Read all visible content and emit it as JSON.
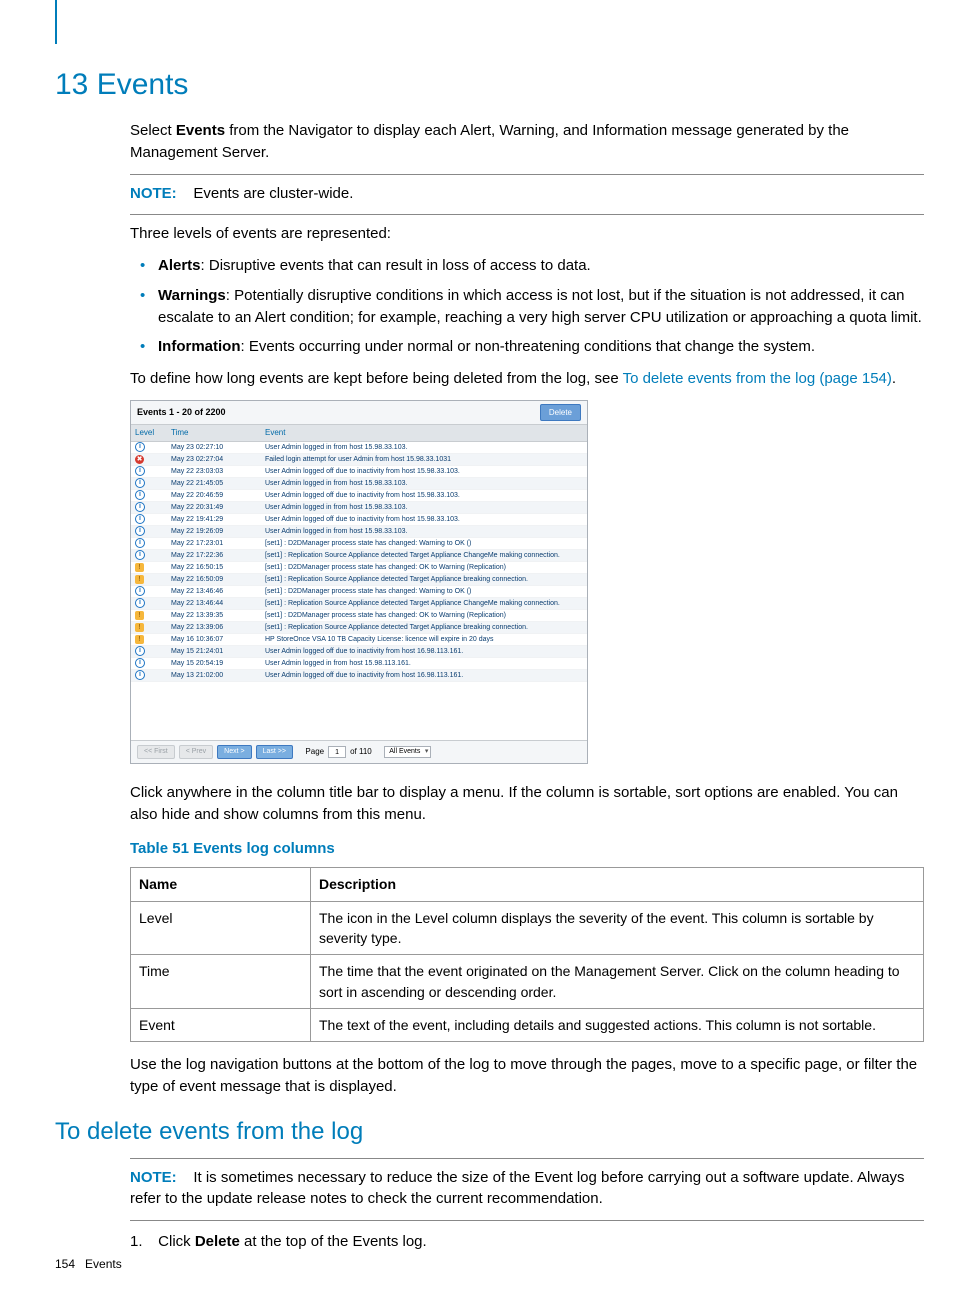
{
  "chapter": {
    "title": "13 Events"
  },
  "intro": {
    "para": "Select <b>Events</b> from the Navigator to display each Alert, Warning, and Information message generated by the Management Server.",
    "note_label": "NOTE:",
    "note_text": "Events are cluster-wide.",
    "levels_intro": "Three levels of events are represented:",
    "bullets": [
      "<b>Alerts</b>: Disruptive events that can result in loss of access to data.",
      "<b>Warnings</b>: Potentially disruptive conditions in which access is not lost, but if the situation is not addressed, it can escalate to an Alert condition; for example, reaching a very high server CPU utilization or approaching a quota limit.",
      "<b>Information</b>: Events occurring under normal or non-threatening conditions that change the system."
    ],
    "define_pre": "To define how long events are kept before being deleted from the log, see ",
    "define_link": "To delete events from the log (page 154)",
    "define_post": "."
  },
  "evlog": {
    "title": "Events 1 - 20 of 2200",
    "delete_btn": "Delete",
    "columns": {
      "level": "Level",
      "time": "Time ",
      "event": "Event"
    },
    "rows": [
      {
        "lvl": "info",
        "time": "May 23 02:27:10",
        "event": "User Admin logged in from host 15.98.33.103."
      },
      {
        "lvl": "alert",
        "time": "May 23 02:27:04",
        "event": "Failed login attempt for user Admin from host 15.98.33.1031"
      },
      {
        "lvl": "info",
        "time": "May 22 23:03:03",
        "event": "User Admin logged off due to inactivity from host 15.98.33.103."
      },
      {
        "lvl": "info",
        "time": "May 22 21:45:05",
        "event": "User Admin logged in from host 15.98.33.103."
      },
      {
        "lvl": "info",
        "time": "May 22 20:46:59",
        "event": "User Admin logged off due to inactivity from host 15.98.33.103."
      },
      {
        "lvl": "info",
        "time": "May 22 20:31:49",
        "event": "User Admin logged in from host 15.98.33.103."
      },
      {
        "lvl": "info",
        "time": "May 22 19:41:29",
        "event": "User Admin logged off due to inactivity from host 15.98.33.103."
      },
      {
        "lvl": "info",
        "time": "May 22 19:26:09",
        "event": "User Admin logged in from host 15.98.33.103."
      },
      {
        "lvl": "info",
        "time": "May 22 17:23:01",
        "event": "[set1] : D2DManager process state has changed: Warning to OK ()"
      },
      {
        "lvl": "info",
        "time": "May 22 17:22:36",
        "event": "[set1] : Replication Source Appliance detected Target Appliance ChangeMe making connection."
      },
      {
        "lvl": "warn",
        "time": "May 22 16:50:15",
        "event": "[set1] : D2DManager process state has changed: OK to Warning (Replication)"
      },
      {
        "lvl": "warn",
        "time": "May 22 16:50:09",
        "event": "[set1] : Replication Source Appliance detected Target Appliance breaking connection."
      },
      {
        "lvl": "info",
        "time": "May 22 13:46:46",
        "event": "[set1] : D2DManager process state has changed: Warning to OK ()"
      },
      {
        "lvl": "info",
        "time": "May 22 13:46:44",
        "event": "[set1] : Replication Source Appliance detected Target Appliance ChangeMe making connection."
      },
      {
        "lvl": "warn",
        "time": "May 22 13:39:35",
        "event": "[set1] : D2DManager process state has changed: OK to Warning (Replication)"
      },
      {
        "lvl": "warn",
        "time": "May 22 13:39:06",
        "event": "[set1] : Replication Source Appliance detected Target Appliance breaking connection."
      },
      {
        "lvl": "warn",
        "time": "May 16 10:36:07",
        "event": "HP StoreOnce VSA 10 TB Capacity License: licence will expire in 20 days"
      },
      {
        "lvl": "info",
        "time": "May 15 21:24:01",
        "event": "User Admin logged off due to inactivity from host 16.98.113.161."
      },
      {
        "lvl": "info",
        "time": "May 15 20:54:19",
        "event": "User Admin logged in from host 15.98.113.161."
      },
      {
        "lvl": "info",
        "time": "May 13 21:02:00",
        "event": "User Admin logged off due to inactivity from host 16.98.113.161."
      }
    ],
    "pager": {
      "first": "<< First",
      "prev": "< Prev",
      "next": "Next >",
      "last": "Last >>",
      "page_label": "Page",
      "page_value": "1",
      "of_label": "of 110",
      "filter": "All Events"
    }
  },
  "post_log": "Click anywhere in the column title bar to display a menu. If the column is sortable, sort options are enabled. You can also hide and show columns from this menu.",
  "cols_table": {
    "caption": "Table 51 Events log columns",
    "headers": {
      "name": "Name",
      "desc": "Description"
    },
    "rows": [
      {
        "name": "Level",
        "desc": "The icon in the Level column displays the severity of the event. This column is sortable by severity type."
      },
      {
        "name": "Time",
        "desc": "The time that the event originated on the Management Server. Click on the column heading to sort in ascending or descending order."
      },
      {
        "name": "Event",
        "desc": "The text of the event, including details and suggested actions. This column is not sortable."
      }
    ]
  },
  "nav_para": "Use the log navigation buttons at the bottom of the log to move through the pages, move to a specific page, or filter the type of event message that is displayed.",
  "delete_section": {
    "heading": "To delete events from the log",
    "note_label": "NOTE:",
    "note_text": "It is sometimes necessary to reduce the size of the Event log before carrying out a software update. Always refer to the update release notes to check the current recommendation.",
    "step1_num": "1.",
    "step1_text": "Click <b>Delete</b> at the top of the Events log."
  },
  "footer": {
    "pagenum": "154",
    "label": "Events"
  }
}
